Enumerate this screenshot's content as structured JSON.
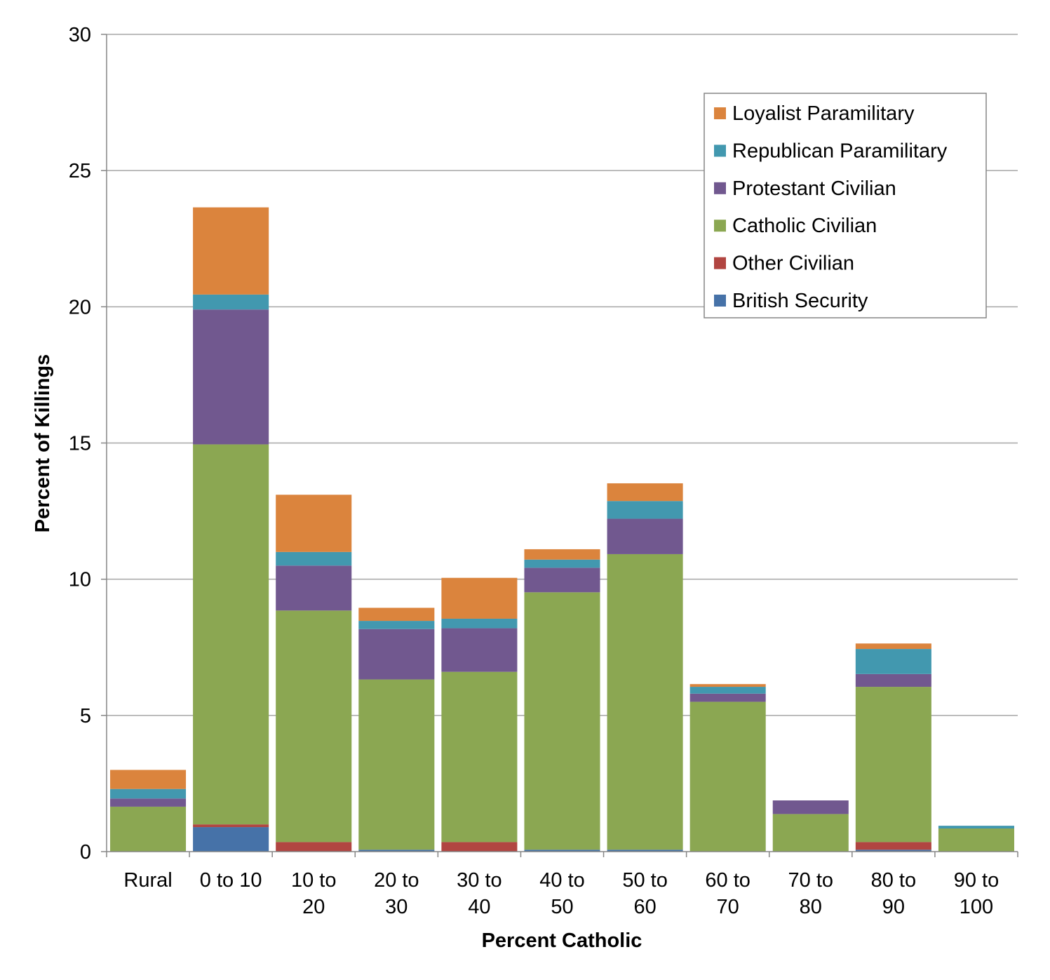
{
  "chart_data": {
    "type": "bar",
    "stacked": true,
    "title": "",
    "xlabel": "Percent Catholic",
    "ylabel": "Percent of Killings",
    "ylim": [
      0,
      30
    ],
    "yticks": [
      "0",
      "5",
      "10",
      "15",
      "20",
      "25",
      "30"
    ],
    "grid": true,
    "legend_position": "top-right",
    "categories": [
      [
        "Rural"
      ],
      [
        "0 to 10"
      ],
      [
        "10 to",
        "20"
      ],
      [
        "20 to",
        "30"
      ],
      [
        "30 to",
        "40"
      ],
      [
        "40 to",
        "50"
      ],
      [
        "50 to",
        "60"
      ],
      [
        "60 to",
        "70"
      ],
      [
        "70 to",
        "80"
      ],
      [
        "80 to",
        "90"
      ],
      [
        "90 to",
        "100"
      ]
    ],
    "series": [
      {
        "name": "British Security",
        "color": "#4672a8",
        "values": [
          0,
          0.9,
          0,
          0.07,
          0,
          0.07,
          0.07,
          0,
          0,
          0.07,
          0
        ]
      },
      {
        "name": "Other Civilian",
        "color": "#b14541",
        "values": [
          0,
          0.1,
          0.35,
          0,
          0.35,
          0,
          0,
          0,
          0,
          0.28,
          0
        ]
      },
      {
        "name": "Catholic Civilian",
        "color": "#8ba752",
        "values": [
          1.65,
          13.95,
          8.5,
          6.25,
          6.25,
          9.45,
          10.85,
          5.5,
          1.38,
          5.7,
          0.85
        ]
      },
      {
        "name": "Protestant Civilian",
        "color": "#71588f",
        "values": [
          0.3,
          4.95,
          1.65,
          1.85,
          1.6,
          0.9,
          1.3,
          0.3,
          0.5,
          0.47,
          0
        ]
      },
      {
        "name": "Republican Paramilitary",
        "color": "#4298af",
        "values": [
          0.35,
          0.55,
          0.5,
          0.3,
          0.35,
          0.3,
          0.65,
          0.25,
          0,
          0.92,
          0.1
        ]
      },
      {
        "name": "Loyalist Paramilitary",
        "color": "#db843d",
        "values": [
          0.7,
          3.2,
          2.1,
          0.48,
          1.5,
          0.38,
          0.65,
          0.1,
          0,
          0.2,
          0
        ]
      }
    ]
  }
}
